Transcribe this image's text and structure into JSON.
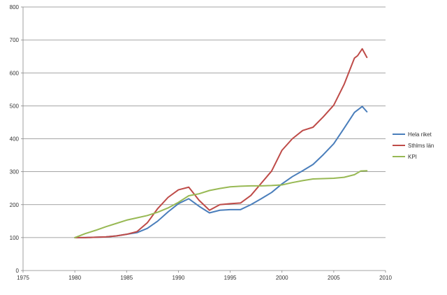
{
  "chart_data": {
    "type": "line",
    "title": "",
    "xlabel": "",
    "ylabel": "",
    "xlim": [
      1975,
      2010
    ],
    "ylim": [
      0,
      800
    ],
    "x_ticks": [
      1975,
      1980,
      1985,
      1990,
      1995,
      2000,
      2005,
      2010
    ],
    "y_ticks": [
      0,
      100,
      200,
      300,
      400,
      500,
      600,
      700,
      800
    ],
    "x_tick_labels": [
      "1975",
      "1980",
      "1985",
      "1990",
      "1995",
      "2000",
      "2005",
      "2010"
    ],
    "y_tick_labels": [
      "0",
      "100",
      "200",
      "300",
      "400",
      "500",
      "600",
      "700",
      "800"
    ],
    "grid": "horizontal",
    "legend_position": "right",
    "series": [
      {
        "name": "Hela riket",
        "color": "#4A7EBB",
        "points": [
          [
            1980,
            100
          ],
          [
            1981,
            100
          ],
          [
            1982,
            101
          ],
          [
            1983,
            102
          ],
          [
            1984,
            105
          ],
          [
            1985,
            110
          ],
          [
            1986,
            115
          ],
          [
            1987,
            128
          ],
          [
            1988,
            150
          ],
          [
            1989,
            178
          ],
          [
            1990,
            203
          ],
          [
            1991,
            218
          ],
          [
            1992,
            195
          ],
          [
            1993,
            175
          ],
          [
            1994,
            183
          ],
          [
            1995,
            185
          ],
          [
            1996,
            185
          ],
          [
            1997,
            200
          ],
          [
            1998,
            218
          ],
          [
            1999,
            237
          ],
          [
            2000,
            263
          ],
          [
            2001,
            285
          ],
          [
            2002,
            303
          ],
          [
            2003,
            322
          ],
          [
            2004,
            352
          ],
          [
            2005,
            385
          ],
          [
            2006,
            432
          ],
          [
            2007,
            480
          ],
          [
            2007.75,
            498
          ],
          [
            2008.2,
            482
          ]
        ]
      },
      {
        "name": "Sthlms län",
        "color": "#BE4B48",
        "points": [
          [
            1980,
            100
          ],
          [
            1981,
            100
          ],
          [
            1982,
            101
          ],
          [
            1983,
            102
          ],
          [
            1984,
            105
          ],
          [
            1985,
            110
          ],
          [
            1986,
            118
          ],
          [
            1987,
            145
          ],
          [
            1988,
            188
          ],
          [
            1989,
            222
          ],
          [
            1990,
            245
          ],
          [
            1991,
            253
          ],
          [
            1992,
            213
          ],
          [
            1993,
            183
          ],
          [
            1994,
            200
          ],
          [
            1995,
            203
          ],
          [
            1996,
            205
          ],
          [
            1997,
            228
          ],
          [
            1998,
            265
          ],
          [
            1999,
            302
          ],
          [
            2000,
            365
          ],
          [
            2001,
            400
          ],
          [
            2002,
            425
          ],
          [
            2003,
            435
          ],
          [
            2004,
            467
          ],
          [
            2005,
            502
          ],
          [
            2006,
            565
          ],
          [
            2007,
            645
          ],
          [
            2007.3,
            652
          ],
          [
            2007.75,
            673
          ],
          [
            2008.2,
            647
          ]
        ]
      },
      {
        "name": "KPI",
        "color": "#98B954",
        "points": [
          [
            1980,
            100
          ],
          [
            1981,
            112
          ],
          [
            1982,
            122
          ],
          [
            1983,
            133
          ],
          [
            1984,
            143
          ],
          [
            1985,
            153
          ],
          [
            1986,
            160
          ],
          [
            1987,
            167
          ],
          [
            1988,
            177
          ],
          [
            1989,
            190
          ],
          [
            1990,
            207
          ],
          [
            1991,
            227
          ],
          [
            1992,
            233
          ],
          [
            1993,
            243
          ],
          [
            1994,
            249
          ],
          [
            1995,
            254
          ],
          [
            1996,
            256
          ],
          [
            1997,
            257
          ],
          [
            1998,
            257
          ],
          [
            1999,
            258
          ],
          [
            2000,
            260
          ],
          [
            2001,
            267
          ],
          [
            2002,
            273
          ],
          [
            2003,
            278
          ],
          [
            2004,
            279
          ],
          [
            2005,
            280
          ],
          [
            2006,
            283
          ],
          [
            2007,
            291
          ],
          [
            2007.6,
            302
          ],
          [
            2008.2,
            303
          ]
        ]
      }
    ]
  }
}
